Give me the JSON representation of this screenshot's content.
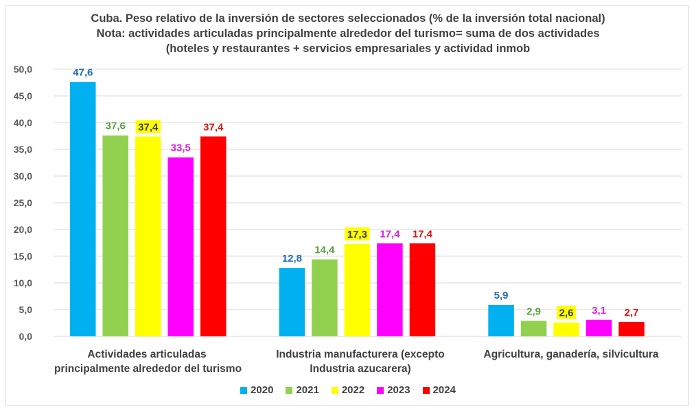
{
  "chart_data": {
    "type": "bar",
    "title_lines": [
      "Cuba. Peso relativo de la inversión de sectores seleccionados (% de la inversión total nacional)",
      "Nota: actividades articuladas principalmente alrededor del turismo= suma de dos actividades",
      "(hoteles y restaurantes + servicios empresariales y actividad inmob"
    ],
    "xlabel": "",
    "ylabel": "",
    "ylim": [
      0,
      50
    ],
    "y_ticks": [
      "0,0",
      "5,0",
      "10,0",
      "15,0",
      "20,0",
      "25,0",
      "30,0",
      "35,0",
      "40,0",
      "45,0",
      "50,0"
    ],
    "grid": true,
    "legend_position": "bottom",
    "categories": [
      [
        "Actividades articuladas",
        "principalmente alrededor del turismo"
      ],
      [
        "Industria manufacturera (excepto",
        "Industria azucarera)"
      ],
      [
        "Agricultura, ganadería,  silvicultura"
      ]
    ],
    "series": [
      {
        "name": "2020",
        "color": "#00b0f0",
        "label_color": "#1f6eb5",
        "values": [
          47.6,
          12.8,
          5.9
        ],
        "labels": [
          "47,6",
          "12,8",
          "5,9"
        ]
      },
      {
        "name": "2021",
        "color": "#92d050",
        "label_color": "#5a9e3c",
        "values": [
          37.6,
          14.4,
          2.9
        ],
        "labels": [
          "37,6",
          "14,4",
          "2,9"
        ]
      },
      {
        "name": "2022",
        "color": "#ffff00",
        "label_color": "#404040",
        "label_bg": "#ffff00",
        "values": [
          37.4,
          17.3,
          2.6
        ],
        "labels": [
          "37,4",
          "17,3",
          "2,6"
        ]
      },
      {
        "name": "2023",
        "color": "#ff00ff",
        "label_color": "#e020e0",
        "values": [
          33.5,
          17.4,
          3.1
        ],
        "labels": [
          "33,5",
          "17,4",
          "3,1"
        ]
      },
      {
        "name": "2024",
        "color": "#ff0000",
        "label_color": "#e01010",
        "values": [
          37.4,
          17.4,
          2.7
        ],
        "labels": [
          "37,4",
          "17,4",
          "2,7"
        ]
      }
    ]
  }
}
